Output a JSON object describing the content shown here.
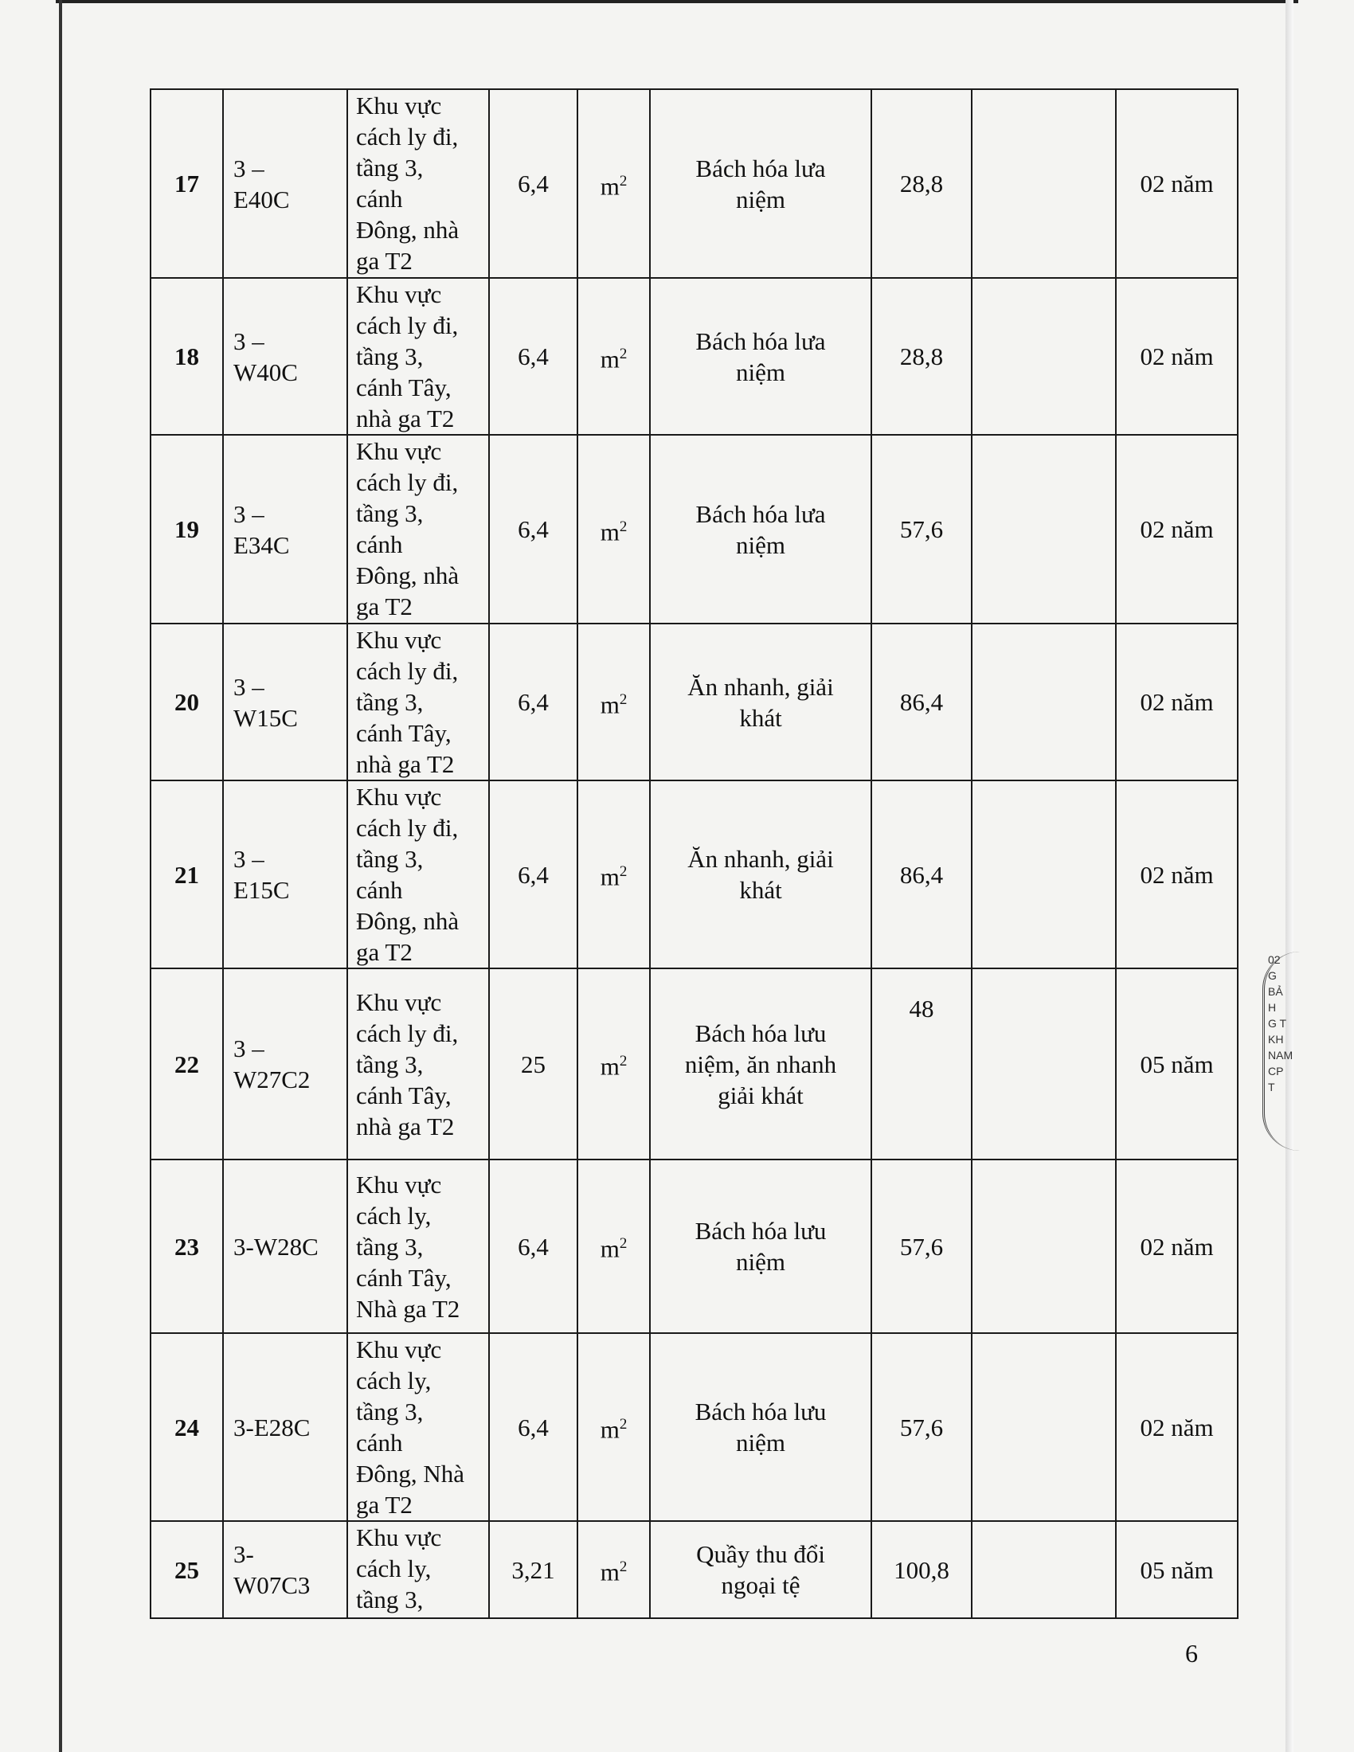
{
  "rows": [
    {
      "no": "17",
      "code": "3 –\nE40C",
      "location": "Khu vực\ncách ly đi,\ntầng 3,\ncánh\nĐông, nhà\nga T2",
      "area": "6,4",
      "unit": "m",
      "unit_sup": "2",
      "purpose": "Bách hóa lưa\nniệm",
      "price": "28,8",
      "blank": "",
      "term": "02 năm"
    },
    {
      "no": "18",
      "code": "3 –\nW40C",
      "location": "Khu vực\ncách ly đi,\ntầng 3,\ncánh Tây,\nnhà ga T2",
      "area": "6,4",
      "unit": "m",
      "unit_sup": "2",
      "purpose": "Bách hóa lưa\nniệm",
      "price": "28,8",
      "blank": "",
      "term": "02 năm"
    },
    {
      "no": "19",
      "code": "3 –\nE34C",
      "location": "Khu vực\ncách ly đi,\ntầng 3,\ncánh\nĐông, nhà\nga T2",
      "area": "6,4",
      "unit": "m",
      "unit_sup": "2",
      "purpose": "Bách hóa lưa\nniệm",
      "price": "57,6",
      "blank": "",
      "term": "02 năm"
    },
    {
      "no": "20",
      "code": "3 –\nW15C",
      "location": "Khu vực\ncách ly đi,\ntầng 3,\ncánh Tây,\nnhà ga T2",
      "area": "6,4",
      "unit": "m",
      "unit_sup": "2",
      "purpose": "Ăn nhanh, giải\nkhát",
      "price": "86,4",
      "blank": "",
      "term": "02 năm"
    },
    {
      "no": "21",
      "code": "3 –\nE15C",
      "location": "Khu vực\ncách ly đi,\ntầng 3,\ncánh\nĐông, nhà\nga T2",
      "area": "6,4",
      "unit": "m",
      "unit_sup": "2",
      "purpose": "Ăn nhanh, giải\nkhát",
      "price": "86,4",
      "blank": "",
      "term": "02 năm"
    },
    {
      "no": "22",
      "code": "3 –\nW27C2",
      "location": "Khu vực\ncách ly đi,\ntầng 3,\ncánh Tây,\nnhà ga T2",
      "area": "25",
      "unit": "m",
      "unit_sup": "2",
      "purpose": "Bách hóa lưu\nniệm, ăn nhanh\ngiải khát",
      "price": "48",
      "blank": "",
      "term": "05 năm"
    },
    {
      "no": "23",
      "code": "3-W28C",
      "location": "Khu vực\ncách ly,\ntầng 3,\ncánh Tây,\nNhà ga T2",
      "area": "6,4",
      "unit": "m",
      "unit_sup": "2",
      "purpose": "Bách hóa lưu\nniệm",
      "price": "57,6",
      "blank": "",
      "term": "02 năm"
    },
    {
      "no": "24",
      "code": "3-E28C",
      "location": "Khu vực\ncách ly,\ntầng 3,\ncánh\nĐông, Nhà\nga T2",
      "area": "6,4",
      "unit": "m",
      "unit_sup": "2",
      "purpose": "Bách hóa lưu\nniệm",
      "price": "57,6",
      "blank": "",
      "term": "02 năm"
    },
    {
      "no": "25",
      "code": "3-\nW07C3",
      "location": "Khu vực\ncách ly,\ntầng 3,",
      "area": "3,21",
      "unit": "m",
      "unit_sup": "2",
      "purpose": "Quầy thu đổi\nngoại tệ",
      "price": "100,8",
      "blank": "",
      "term": "05 năm"
    }
  ],
  "page_number": "6",
  "stamp_text": "02\nG\nBẢ\nH\nG T\nKH\nNAM\nCP\nT"
}
